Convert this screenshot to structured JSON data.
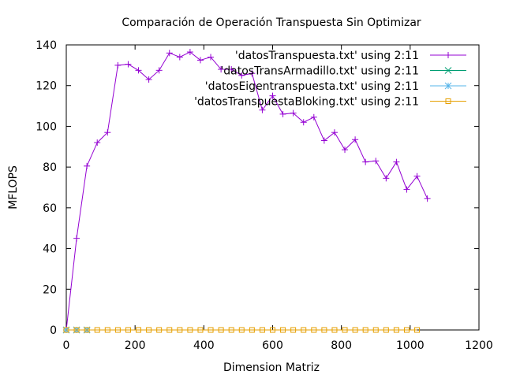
{
  "chart_data": {
    "type": "line",
    "title": "Comparación de Operación Transpuesta Sin Optimizar",
    "xlabel": "Dimension Matriz",
    "ylabel": "MFLOPS",
    "xlim": [
      0,
      1200
    ],
    "ylim": [
      0,
      140
    ],
    "xticks": [
      "0",
      "200",
      "400",
      "600",
      "800",
      "1000",
      "1200"
    ],
    "yticks": [
      "0",
      "20",
      "40",
      "60",
      "80",
      "100",
      "120",
      "140"
    ],
    "grid": false,
    "legend_position": "top-right",
    "series": [
      {
        "name": "'datosTranspuesta.txt' using 2:11",
        "color": "#9400d3",
        "marker": "plus",
        "x": [
          0,
          30,
          60,
          90,
          120,
          150,
          180,
          210,
          240,
          270,
          300,
          330,
          360,
          390,
          420,
          450,
          480,
          510,
          540,
          570,
          600,
          630,
          660,
          690,
          720,
          750,
          780,
          810,
          840,
          870,
          900,
          930,
          960,
          990,
          1020,
          1050
        ],
        "y": [
          0,
          45,
          80.5,
          92,
          97,
          130,
          130.5,
          127.5,
          123,
          127.5,
          136,
          134,
          136.5,
          132.5,
          134,
          128,
          128,
          125,
          126,
          108,
          115,
          106,
          106.5,
          102,
          104.5,
          93,
          97,
          88.5,
          93.5,
          82.5,
          83,
          74.5,
          82.5,
          69,
          75.5,
          64.5
        ]
      },
      {
        "name": "'datosTransArmadillo.txt' using 2:11",
        "color": "#009e73",
        "marker": "cross",
        "x": [
          0,
          30,
          60
        ],
        "y": [
          0,
          0,
          0
        ]
      },
      {
        "name": "'datosEigentranspuesta.txt' using 2:11",
        "color": "#56b4e9",
        "marker": "star",
        "x": [
          0,
          30,
          60
        ],
        "y": [
          0,
          0,
          0
        ]
      },
      {
        "name": "'datosTranspuestaBloking.txt' using 2:11",
        "color": "#e69f00",
        "marker": "square",
        "x": [
          0,
          30,
          60,
          90,
          120,
          150,
          180,
          210,
          240,
          270,
          300,
          330,
          360,
          390,
          420,
          450,
          480,
          510,
          540,
          570,
          600,
          630,
          660,
          690,
          720,
          750,
          780,
          810,
          840,
          870,
          900,
          930,
          960,
          990,
          1020
        ],
        "y": [
          0,
          0,
          0,
          0,
          0,
          0,
          0,
          0,
          0,
          0,
          0,
          0,
          0,
          0,
          0,
          0,
          0,
          0,
          0,
          0,
          0,
          0,
          0,
          0,
          0,
          0,
          0,
          0,
          0,
          0,
          0,
          0,
          0,
          0,
          0
        ]
      }
    ]
  }
}
